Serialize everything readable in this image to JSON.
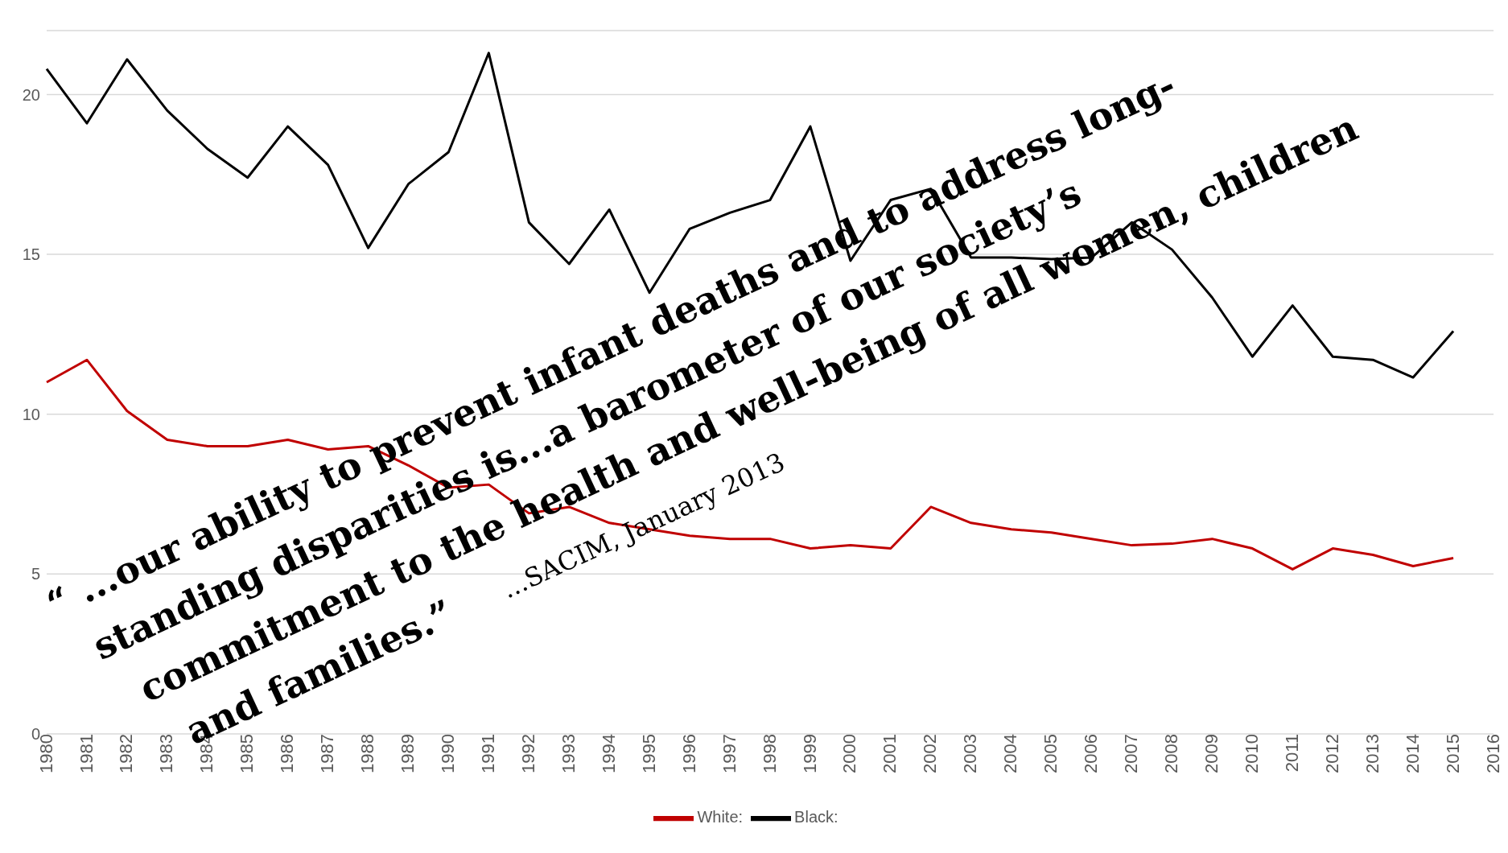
{
  "chart_data": {
    "type": "line",
    "categories": [
      "1980",
      "1981",
      "1982",
      "1983",
      "1984",
      "1985",
      "1986",
      "1987",
      "1988",
      "1989",
      "1990",
      "1991",
      "1992",
      "1993",
      "1994",
      "1995",
      "1996",
      "1997",
      "1998",
      "1999",
      "2000",
      "2001",
      "2002",
      "2003",
      "2004",
      "2005",
      "2006",
      "2007",
      "2008",
      "2009",
      "2010",
      "2011",
      "2012",
      "2013",
      "2014",
      "2015",
      "2016"
    ],
    "series": [
      {
        "name": "White:",
        "color": "#c00000",
        "values": [
          11.0,
          11.7,
          10.1,
          9.2,
          9.0,
          9.0,
          9.2,
          8.9,
          9.0,
          8.4,
          7.7,
          7.8,
          6.9,
          7.1,
          6.6,
          6.4,
          6.2,
          6.1,
          6.1,
          5.8,
          5.9,
          5.8,
          7.1,
          6.6,
          6.4,
          6.3,
          6.1,
          5.9,
          5.95,
          6.1,
          5.8,
          5.15,
          5.8,
          5.6,
          5.25,
          5.5,
          null
        ]
      },
      {
        "name": "Black:",
        "color": "#000000",
        "values": [
          20.8,
          19.1,
          21.1,
          19.5,
          18.3,
          17.4,
          19.0,
          17.8,
          15.2,
          17.2,
          18.2,
          21.3,
          16.0,
          14.7,
          16.4,
          13.8,
          15.8,
          16.3,
          16.7,
          19.0,
          14.8,
          16.7,
          17.05,
          14.9,
          14.9,
          14.85,
          14.9,
          16.0,
          15.15,
          13.65,
          11.8,
          13.4,
          11.8,
          11.7,
          11.15,
          12.6,
          null
        ]
      }
    ],
    "ylim": [
      0,
      22
    ],
    "yticks": [
      0,
      5,
      10,
      15,
      20
    ],
    "grid": "y",
    "legend": "bottom",
    "marker": "none",
    "line_style": "solid",
    "annotations": [
      "“ ...our ability to prevent infant deaths and to address long-",
      "standing disparities is...a barometer of our society’s",
      "commitment to the health and well-being of all women, children",
      "and families.”",
      "...SACIM, January 2013"
    ]
  }
}
